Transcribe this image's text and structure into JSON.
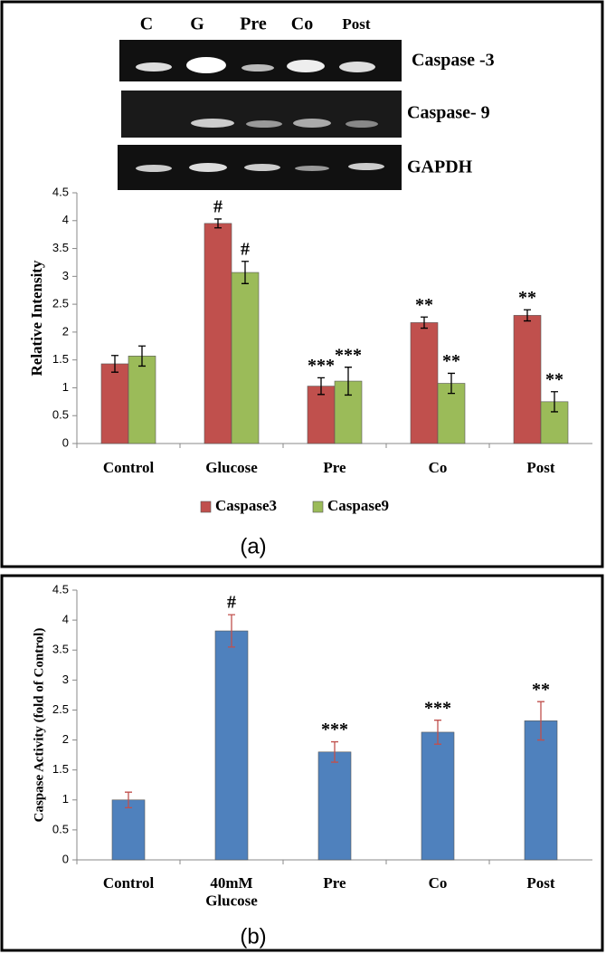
{
  "blot": {
    "lanes": [
      "C",
      "G",
      "Pre",
      "Co",
      "Post"
    ],
    "rows": [
      "Caspase -3",
      "Caspase- 9",
      "GAPDH"
    ]
  },
  "chart_data": [
    {
      "type": "bar",
      "y_label": "Relative Intensity",
      "caption": "(a)",
      "categories": [
        "Control",
        "Glucose",
        "Pre",
        "Co",
        "Post"
      ],
      "series": [
        {
          "name": "Caspase3",
          "color": "#c0504d",
          "values": [
            1.43,
            3.95,
            1.03,
            2.17,
            2.3
          ],
          "errors": [
            0.15,
            0.08,
            0.15,
            0.1,
            0.1
          ],
          "annotations": [
            null,
            "#",
            "***",
            "**",
            "**"
          ]
        },
        {
          "name": "Caspase9",
          "color": "#9bbb59",
          "values": [
            1.57,
            3.07,
            1.12,
            1.08,
            0.75
          ],
          "errors": [
            0.18,
            0.2,
            0.25,
            0.18,
            0.18
          ],
          "annotations": [
            null,
            "#",
            "***",
            "**",
            "**"
          ]
        }
      ],
      "error_color": "#000000",
      "ylim": [
        0,
        4.5
      ],
      "yticks": [
        0,
        0.5,
        1,
        1.5,
        2,
        2.5,
        3,
        3.5,
        4,
        4.5
      ],
      "legend": "bottom"
    },
    {
      "type": "bar",
      "y_label": "Caspase Activity (fold of Control)",
      "caption": "(b)",
      "categories": [
        "Control",
        "40mM Glucose",
        "Pre",
        "Co",
        "Post"
      ],
      "color": "#4f81bd",
      "values": [
        1.0,
        3.82,
        1.8,
        2.13,
        2.32
      ],
      "errors": [
        0.13,
        0.27,
        0.17,
        0.2,
        0.32
      ],
      "annotations": [
        null,
        "#",
        "***",
        "***",
        "**"
      ],
      "error_color": "#c0504d",
      "ylim": [
        0,
        4.5
      ],
      "yticks": [
        0,
        0.5,
        1,
        1.5,
        2,
        2.5,
        3,
        3.5,
        4,
        4.5
      ]
    }
  ]
}
